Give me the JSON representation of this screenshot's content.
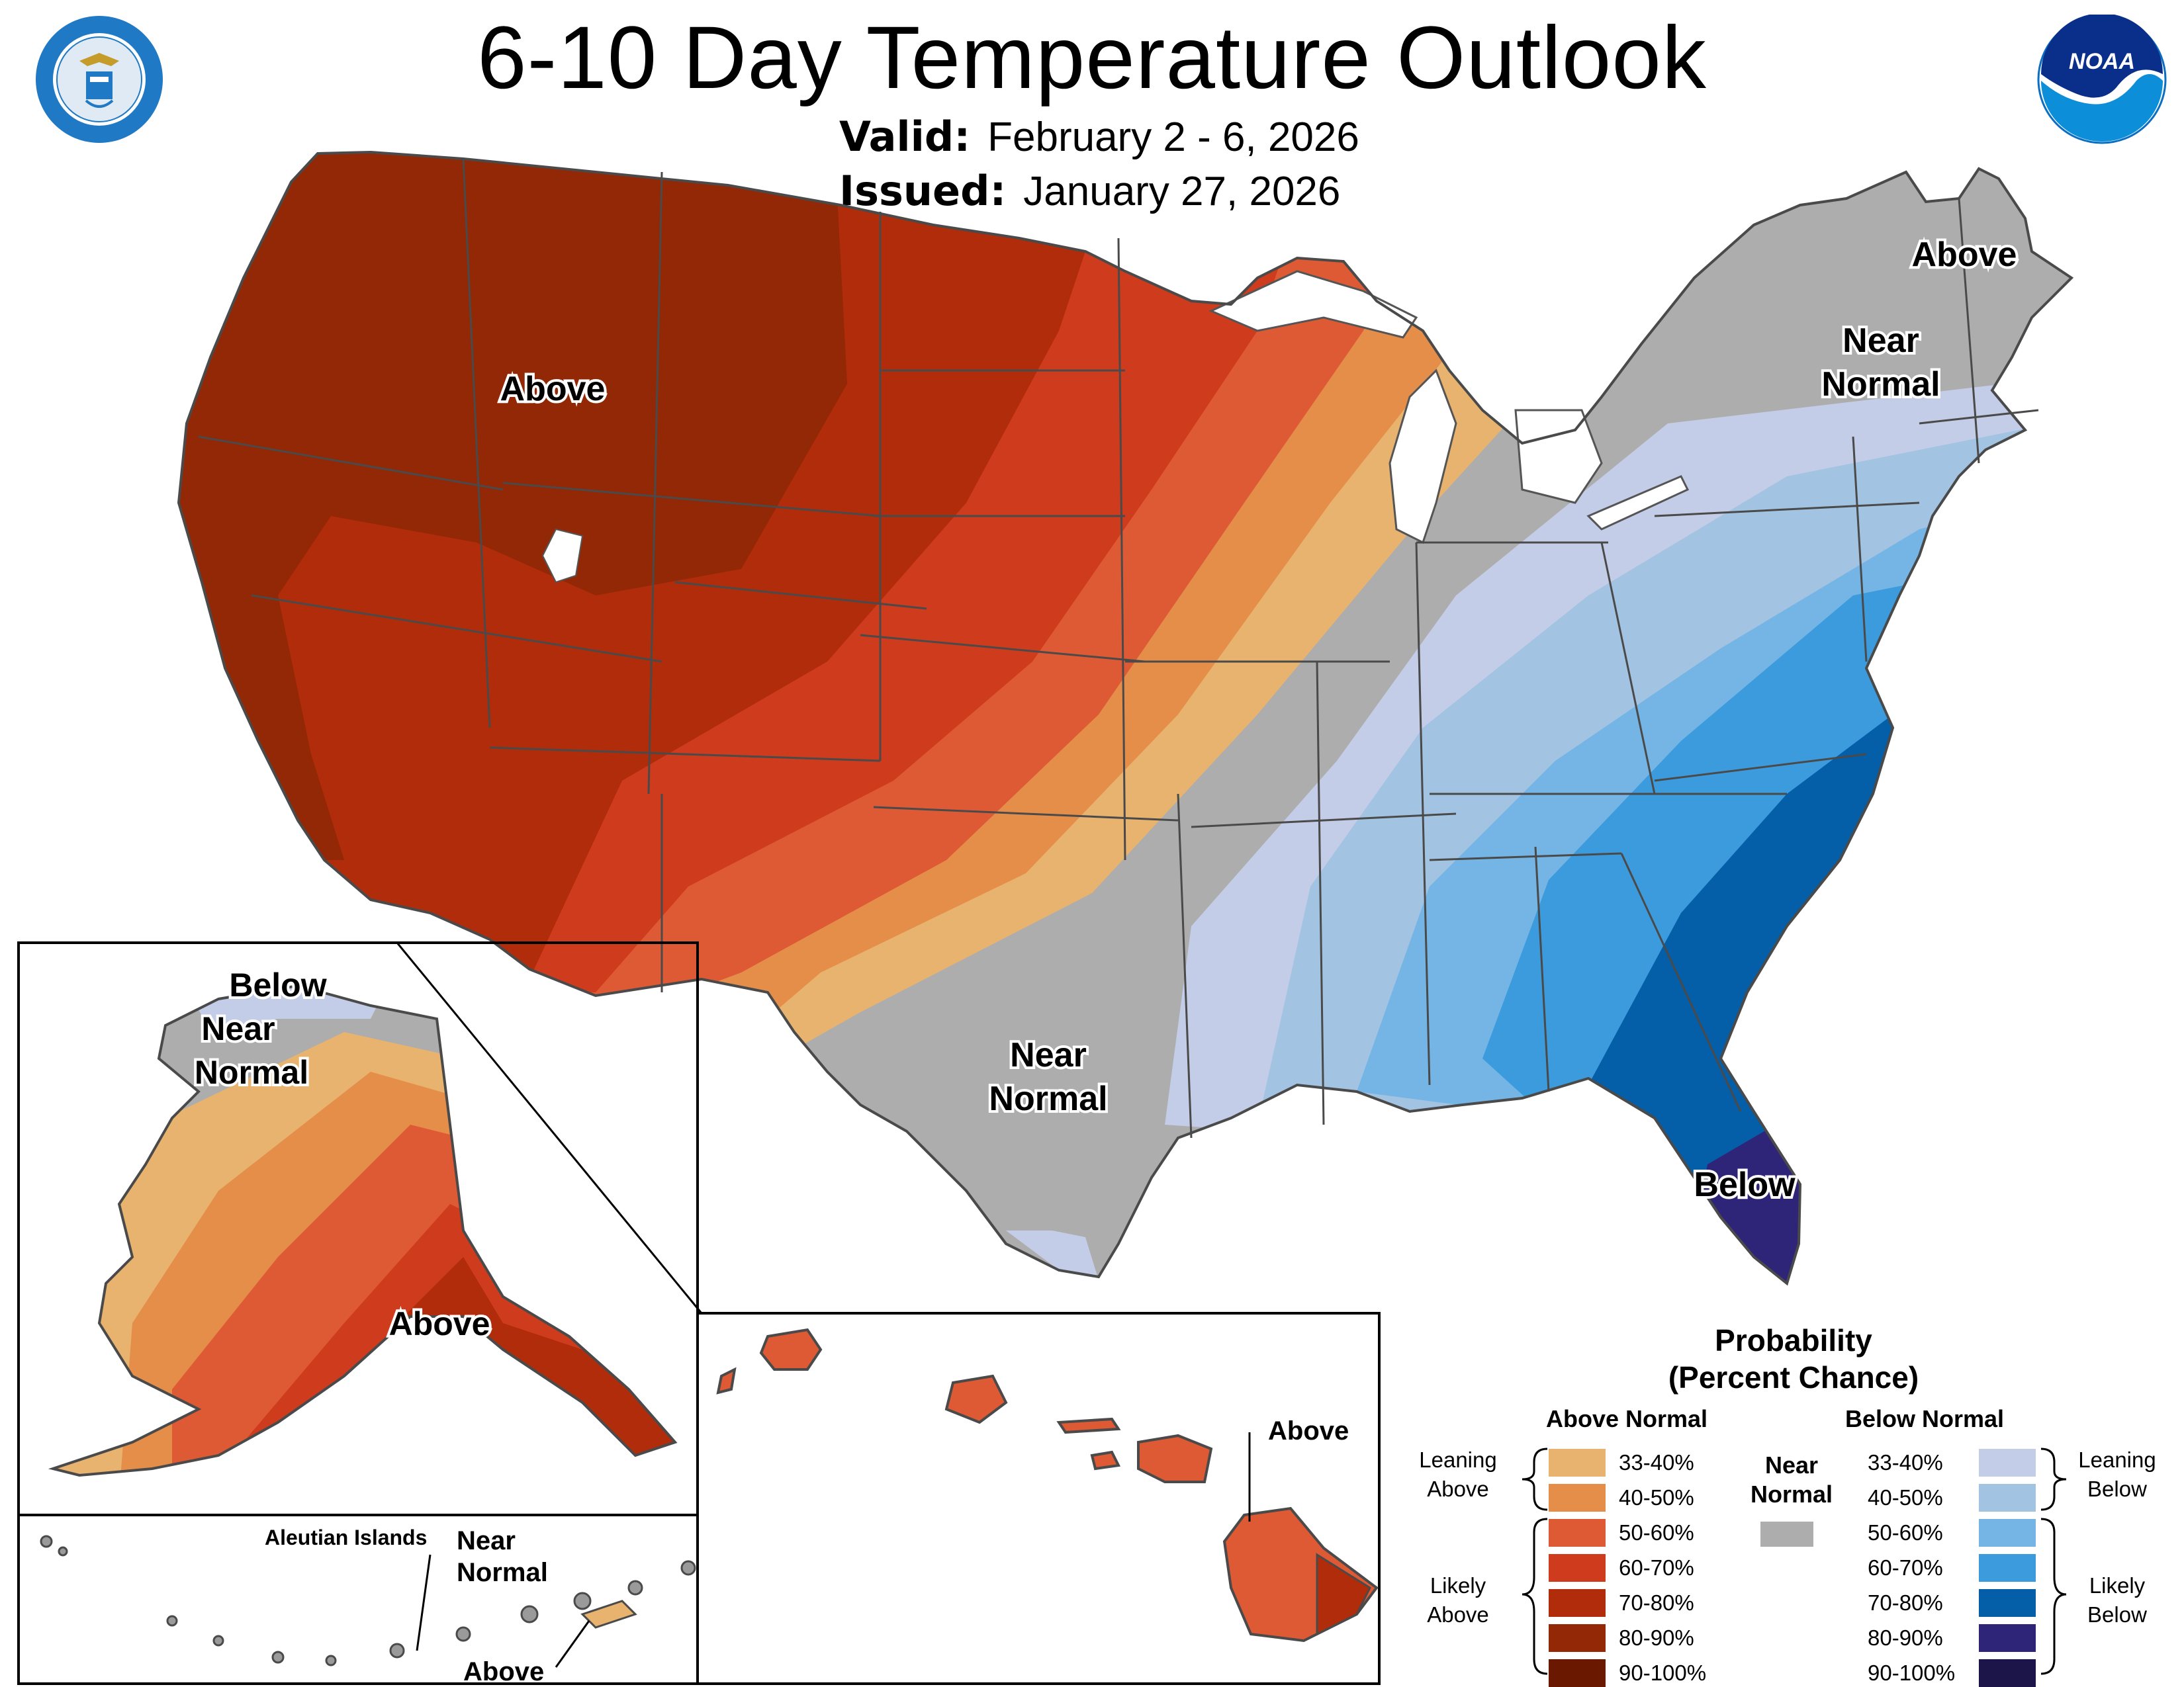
{
  "header": {
    "title": "6-10 Day Temperature Outlook",
    "valid_label": "Valid:",
    "valid_value": "February 2 - 6, 2026",
    "issued_label": "Issued:",
    "issued_value": "January 27, 2026"
  },
  "logos": {
    "commerce_seal": "seal-icon",
    "noaa_logo_text": "NOAA"
  },
  "map": {
    "labels": {
      "conus_above": "Above",
      "maine_above": "Above",
      "northeast_near": "Near",
      "northeast_normal": "Normal",
      "texas_near": "Near",
      "texas_normal": "Normal",
      "florida_below": "Below",
      "alaska_below": "Below",
      "alaska_near": "Near",
      "alaska_normal": "Normal",
      "alaska_above": "Above",
      "aleutian_title": "Aleutian Islands",
      "aleutian_near": "Near",
      "aleutian_normal": "Normal",
      "aleutian_above": "Above",
      "hawaii_above": "Above"
    },
    "colors": {
      "above_33_40": "#E8B36E",
      "above_40_50": "#E58E4A",
      "above_50_60": "#DE5A34",
      "above_60_70": "#CF3B1D",
      "above_70_80": "#B02C0A",
      "above_80_90": "#922805",
      "above_90_100": "#6B1800",
      "near_normal": "#ADADAD",
      "below_33_40": "#C4CDE7",
      "below_40_50": "#A3C3E3",
      "below_50_60": "#74B5E5",
      "below_60_70": "#3C9BDC",
      "below_70_80": "#045EA8",
      "below_80_90": "#2E2578",
      "below_90_100": "#1C1549"
    }
  },
  "legend": {
    "title_line1": "Probability",
    "title_line2": "(Percent Chance)",
    "above_header": "Above Normal",
    "below_header": "Below Normal",
    "near_line1": "Near",
    "near_line2": "Normal",
    "leaning_above_1": "Leaning",
    "leaning_above_2": "Above",
    "likely_above_1": "Likely",
    "likely_above_2": "Above",
    "leaning_below_1": "Leaning",
    "leaning_below_2": "Below",
    "likely_below_1": "Likely",
    "likely_below_2": "Below",
    "above_items": [
      {
        "label": "33-40%",
        "color": "#E8B36E"
      },
      {
        "label": "40-50%",
        "color": "#E58E4A"
      },
      {
        "label": "50-60%",
        "color": "#DE5A34"
      },
      {
        "label": "60-70%",
        "color": "#CF3B1D"
      },
      {
        "label": "70-80%",
        "color": "#B02C0A"
      },
      {
        "label": "80-90%",
        "color": "#922805"
      },
      {
        "label": "90-100%",
        "color": "#6B1800"
      }
    ],
    "below_items": [
      {
        "label": "33-40%",
        "color": "#C4CDE7"
      },
      {
        "label": "40-50%",
        "color": "#A3C3E3"
      },
      {
        "label": "50-60%",
        "color": "#74B5E5"
      },
      {
        "label": "60-70%",
        "color": "#3C9BDC"
      },
      {
        "label": "70-80%",
        "color": "#045EA8"
      },
      {
        "label": "80-90%",
        "color": "#2E2578"
      },
      {
        "label": "90-100%",
        "color": "#1C1549"
      }
    ],
    "near_color": "#ADADAD"
  }
}
